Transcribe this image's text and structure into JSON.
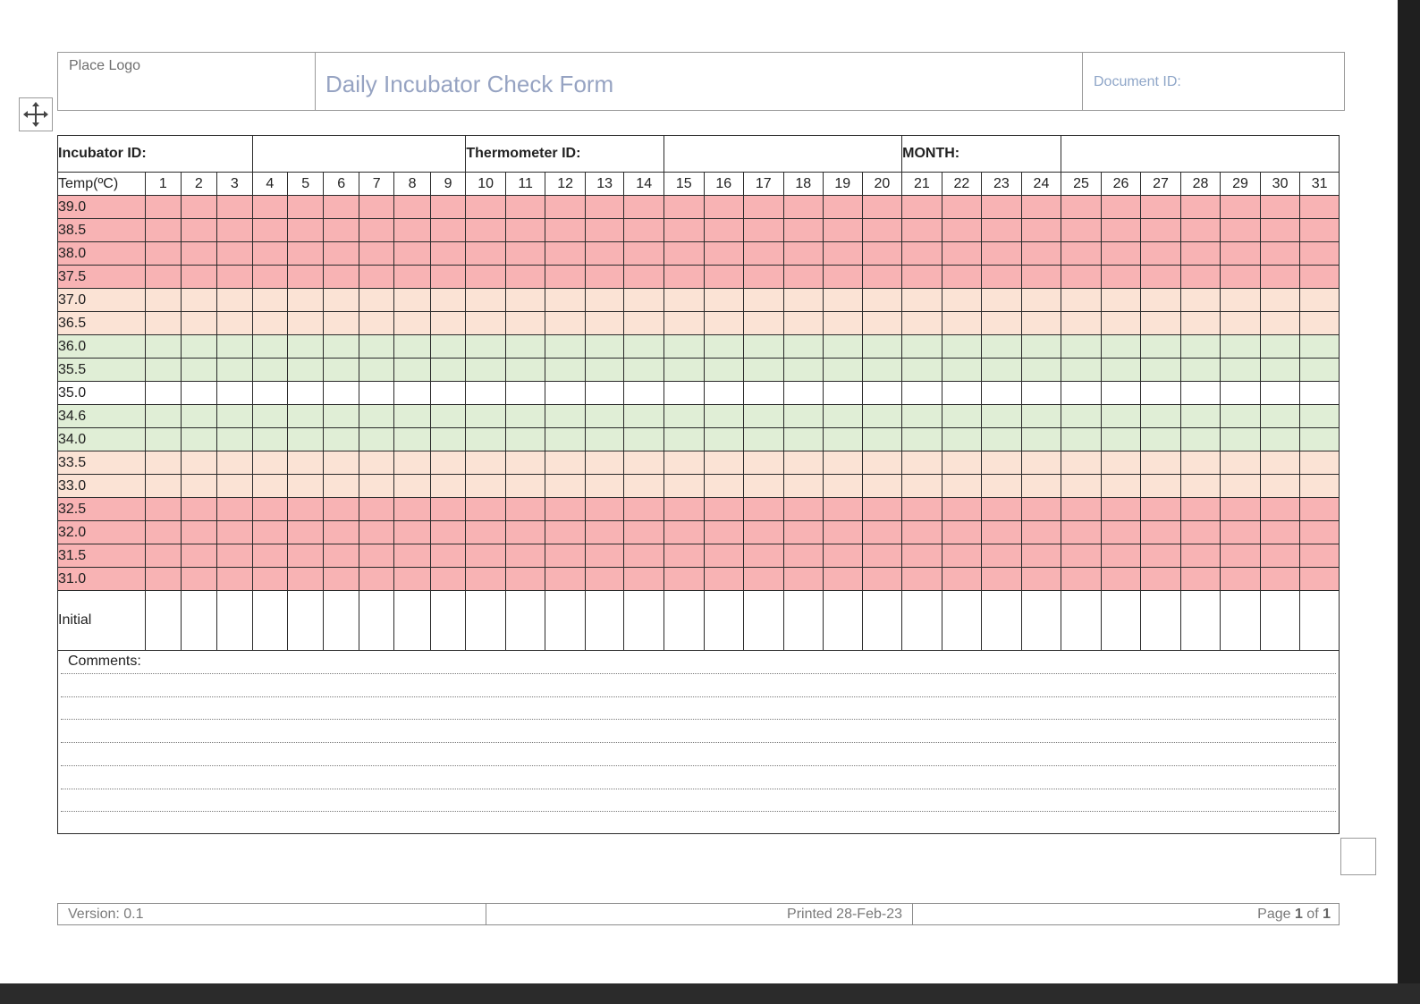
{
  "header": {
    "logo_placeholder": "Place Logo",
    "title": "Daily Incubator Check Form",
    "document_id_label": "Document ID:"
  },
  "form": {
    "incubator_id_label": "Incubator ID:",
    "thermometer_id_label": "Thermometer ID:",
    "month_label": "MONTH:",
    "temp_header": "Temp(ºC)",
    "days": [
      "1",
      "2",
      "3",
      "4",
      "5",
      "6",
      "7",
      "8",
      "9",
      "10",
      "11",
      "12",
      "13",
      "14",
      "15",
      "16",
      "17",
      "18",
      "19",
      "20",
      "21",
      "22",
      "23",
      "24",
      "25",
      "26",
      "27",
      "28",
      "29",
      "30",
      "31"
    ],
    "temperatures": [
      {
        "value": "39.0",
        "band": "red"
      },
      {
        "value": "38.5",
        "band": "red"
      },
      {
        "value": "38.0",
        "band": "red"
      },
      {
        "value": "37.5",
        "band": "red"
      },
      {
        "value": "37.0",
        "band": "peach"
      },
      {
        "value": "36.5",
        "band": "peach"
      },
      {
        "value": "36.0",
        "band": "green"
      },
      {
        "value": "35.5",
        "band": "green"
      },
      {
        "value": "35.0",
        "band": "white"
      },
      {
        "value": "34.6",
        "band": "green"
      },
      {
        "value": "34.0",
        "band": "green"
      },
      {
        "value": "33.5",
        "band": "peach"
      },
      {
        "value": "33.0",
        "band": "peach"
      },
      {
        "value": "32.5",
        "band": "red"
      },
      {
        "value": "32.0",
        "band": "red"
      },
      {
        "value": "31.5",
        "band": "red"
      },
      {
        "value": "31.0",
        "band": "red"
      }
    ],
    "initial_label": "Initial",
    "comments_label": "Comments:",
    "band_colors": {
      "red": "#f8b3b4",
      "peach": "#fbe3d5",
      "green": "#e0eed6",
      "white": "#ffffff"
    }
  },
  "footer": {
    "version": "Version: 0.1",
    "printed": "Printed 28-Feb-23",
    "page_prefix": "Page ",
    "page_current": "1",
    "page_of": " of ",
    "page_total": "1"
  }
}
